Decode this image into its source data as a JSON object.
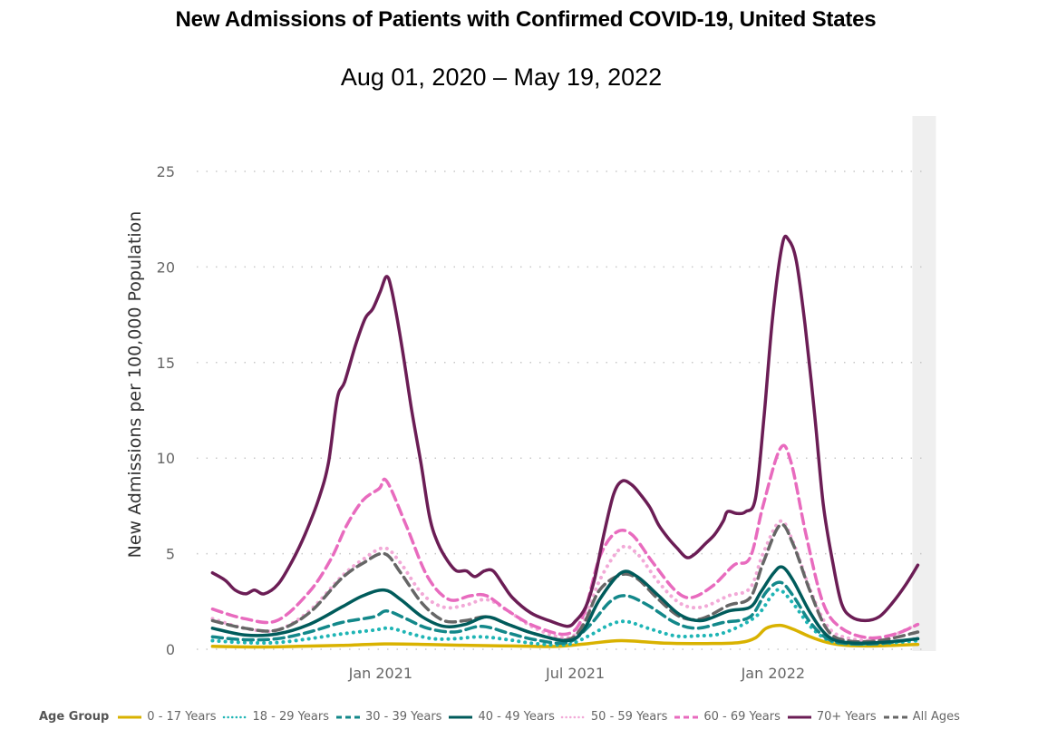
{
  "title": "New Admissions of Patients with Confirmed COVID-19, United States",
  "subtitle": "Aug 01, 2020 – May 19, 2022",
  "chart_data": {
    "type": "line",
    "title": "New Admissions of Patients with Confirmed COVID-19, United States",
    "subtitle": "Aug 01, 2020 – May 19, 2022",
    "xlabel": "",
    "ylabel": "New Admissions per 100,000 Population",
    "x_unit": "days since Aug 01, 2020",
    "xlim": [
      -2,
      664
    ],
    "ylim": [
      0,
      25
    ],
    "yticks": [
      0,
      5,
      10,
      15,
      20,
      25
    ],
    "xticks": [
      {
        "day": 153,
        "label": "Jan 2021"
      },
      {
        "day": 334,
        "label": "Jul 2021"
      },
      {
        "day": 518,
        "label": "Jan 2022"
      }
    ],
    "grid": "horizontal dotted",
    "shaded_region_note": "incomplete recent data",
    "shaded_region_days": [
      656,
      664
    ],
    "legend_position": "bottom",
    "legend_title": "Age Group",
    "series": [
      {
        "name": "0 - 17 Years",
        "color": "#D9B200",
        "style": "solid",
        "points": [
          [
            0,
            0.15
          ],
          [
            40,
            0.12
          ],
          [
            80,
            0.15
          ],
          [
            120,
            0.2
          ],
          [
            160,
            0.28
          ],
          [
            200,
            0.25
          ],
          [
            240,
            0.2
          ],
          [
            280,
            0.17
          ],
          [
            320,
            0.15
          ],
          [
            350,
            0.3
          ],
          [
            380,
            0.45
          ],
          [
            420,
            0.32
          ],
          [
            460,
            0.3
          ],
          [
            490,
            0.35
          ],
          [
            505,
            0.6
          ],
          [
            515,
            1.1
          ],
          [
            528,
            1.25
          ],
          [
            540,
            1.05
          ],
          [
            556,
            0.65
          ],
          [
            572,
            0.35
          ],
          [
            590,
            0.2
          ],
          [
            620,
            0.18
          ],
          [
            656,
            0.25
          ]
        ]
      },
      {
        "name": "18 - 29 Years",
        "color": "#1FB5B5",
        "style": "dotted",
        "points": [
          [
            0,
            0.45
          ],
          [
            30,
            0.35
          ],
          [
            60,
            0.35
          ],
          [
            90,
            0.55
          ],
          [
            120,
            0.8
          ],
          [
            150,
            1.0
          ],
          [
            165,
            1.1
          ],
          [
            185,
            0.8
          ],
          [
            205,
            0.55
          ],
          [
            225,
            0.55
          ],
          [
            250,
            0.65
          ],
          [
            275,
            0.5
          ],
          [
            300,
            0.3
          ],
          [
            330,
            0.25
          ],
          [
            350,
            0.7
          ],
          [
            370,
            1.3
          ],
          [
            385,
            1.45
          ],
          [
            405,
            1.1
          ],
          [
            430,
            0.7
          ],
          [
            450,
            0.7
          ],
          [
            475,
            0.85
          ],
          [
            505,
            1.7
          ],
          [
            520,
            2.8
          ],
          [
            528,
            3.1
          ],
          [
            540,
            2.4
          ],
          [
            556,
            1.2
          ],
          [
            572,
            0.5
          ],
          [
            590,
            0.3
          ],
          [
            620,
            0.3
          ],
          [
            656,
            0.45
          ]
        ]
      },
      {
        "name": "30 - 39 Years",
        "color": "#13888A",
        "style": "dashed",
        "points": [
          [
            0,
            0.65
          ],
          [
            30,
            0.5
          ],
          [
            60,
            0.55
          ],
          [
            90,
            0.9
          ],
          [
            120,
            1.4
          ],
          [
            150,
            1.7
          ],
          [
            162,
            2.0
          ],
          [
            180,
            1.6
          ],
          [
            200,
            1.1
          ],
          [
            225,
            0.9
          ],
          [
            250,
            1.2
          ],
          [
            275,
            0.85
          ],
          [
            300,
            0.5
          ],
          [
            330,
            0.35
          ],
          [
            350,
            1.2
          ],
          [
            370,
            2.5
          ],
          [
            385,
            2.8
          ],
          [
            405,
            2.3
          ],
          [
            430,
            1.4
          ],
          [
            450,
            1.1
          ],
          [
            475,
            1.4
          ],
          [
            500,
            1.7
          ],
          [
            515,
            3.0
          ],
          [
            528,
            3.5
          ],
          [
            540,
            2.8
          ],
          [
            556,
            1.4
          ],
          [
            572,
            0.55
          ],
          [
            590,
            0.3
          ],
          [
            620,
            0.3
          ],
          [
            656,
            0.55
          ]
        ]
      },
      {
        "name": "40 - 49 Years",
        "color": "#005B5B",
        "style": "solid",
        "points": [
          [
            0,
            1.1
          ],
          [
            30,
            0.75
          ],
          [
            60,
            0.8
          ],
          [
            90,
            1.3
          ],
          [
            120,
            2.2
          ],
          [
            140,
            2.8
          ],
          [
            160,
            3.1
          ],
          [
            175,
            2.6
          ],
          [
            195,
            1.7
          ],
          [
            215,
            1.2
          ],
          [
            235,
            1.3
          ],
          [
            255,
            1.7
          ],
          [
            275,
            1.3
          ],
          [
            300,
            0.8
          ],
          [
            330,
            0.45
          ],
          [
            345,
            1.0
          ],
          [
            360,
            2.6
          ],
          [
            380,
            4.0
          ],
          [
            395,
            3.8
          ],
          [
            415,
            2.8
          ],
          [
            435,
            1.8
          ],
          [
            455,
            1.5
          ],
          [
            480,
            2.0
          ],
          [
            500,
            2.2
          ],
          [
            510,
            3.0
          ],
          [
            522,
            4.0
          ],
          [
            530,
            4.3
          ],
          [
            540,
            3.6
          ],
          [
            556,
            1.9
          ],
          [
            572,
            0.7
          ],
          [
            590,
            0.35
          ],
          [
            620,
            0.35
          ],
          [
            656,
            0.55
          ]
        ]
      },
      {
        "name": "50 - 59 Years",
        "color": "#F2A9D7",
        "style": "dotted",
        "points": [
          [
            0,
            1.6
          ],
          [
            30,
            1.1
          ],
          [
            60,
            1.0
          ],
          [
            90,
            2.0
          ],
          [
            120,
            3.8
          ],
          [
            140,
            4.7
          ],
          [
            160,
            5.3
          ],
          [
            175,
            4.5
          ],
          [
            195,
            2.9
          ],
          [
            215,
            2.2
          ],
          [
            235,
            2.3
          ],
          [
            255,
            2.6
          ],
          [
            275,
            2.0
          ],
          [
            300,
            1.1
          ],
          [
            330,
            0.6
          ],
          [
            345,
            1.4
          ],
          [
            360,
            3.6
          ],
          [
            380,
            5.3
          ],
          [
            395,
            5.0
          ],
          [
            415,
            3.5
          ],
          [
            435,
            2.4
          ],
          [
            455,
            2.2
          ],
          [
            480,
            2.8
          ],
          [
            500,
            3.2
          ],
          [
            512,
            5.0
          ],
          [
            528,
            6.7
          ],
          [
            540,
            5.6
          ],
          [
            556,
            3.1
          ],
          [
            572,
            1.2
          ],
          [
            590,
            0.6
          ],
          [
            620,
            0.5
          ],
          [
            656,
            1.3
          ]
        ]
      },
      {
        "name": "60 - 69 Years",
        "color": "#E86BBE",
        "style": "dashed",
        "points": [
          [
            0,
            2.1
          ],
          [
            30,
            1.6
          ],
          [
            60,
            1.5
          ],
          [
            90,
            3.0
          ],
          [
            110,
            4.7
          ],
          [
            125,
            6.5
          ],
          [
            140,
            7.8
          ],
          [
            155,
            8.4
          ],
          [
            162,
            8.8
          ],
          [
            180,
            6.5
          ],
          [
            200,
            3.8
          ],
          [
            220,
            2.6
          ],
          [
            240,
            2.8
          ],
          [
            255,
            2.8
          ],
          [
            275,
            2.0
          ],
          [
            300,
            1.2
          ],
          [
            330,
            0.8
          ],
          [
            345,
            1.8
          ],
          [
            360,
            4.8
          ],
          [
            375,
            6.1
          ],
          [
            390,
            6.0
          ],
          [
            410,
            4.5
          ],
          [
            430,
            3.1
          ],
          [
            445,
            2.7
          ],
          [
            465,
            3.3
          ],
          [
            485,
            4.4
          ],
          [
            500,
            4.8
          ],
          [
            512,
            7.5
          ],
          [
            528,
            10.5
          ],
          [
            538,
            9.8
          ],
          [
            552,
            6.0
          ],
          [
            568,
            2.4
          ],
          [
            585,
            1.1
          ],
          [
            610,
            0.6
          ],
          [
            635,
            0.8
          ],
          [
            656,
            1.3
          ]
        ]
      },
      {
        "name": "70+ Years",
        "color": "#6B1D55",
        "style": "solid",
        "points": [
          [
            0,
            4.0
          ],
          [
            12,
            3.6
          ],
          [
            21,
            3.1
          ],
          [
            31,
            2.9
          ],
          [
            39,
            3.1
          ],
          [
            48,
            2.9
          ],
          [
            61,
            3.4
          ],
          [
            74,
            4.6
          ],
          [
            86,
            6.0
          ],
          [
            99,
            7.9
          ],
          [
            108,
            9.8
          ],
          [
            116,
            13.1
          ],
          [
            123,
            14.0
          ],
          [
            133,
            15.9
          ],
          [
            142,
            17.3
          ],
          [
            149,
            17.8
          ],
          [
            156,
            18.7
          ],
          [
            162,
            19.5
          ],
          [
            167,
            18.7
          ],
          [
            176,
            15.9
          ],
          [
            185,
            12.6
          ],
          [
            194,
            9.7
          ],
          [
            202,
            6.9
          ],
          [
            210,
            5.5
          ],
          [
            219,
            4.6
          ],
          [
            227,
            4.1
          ],
          [
            236,
            4.1
          ],
          [
            244,
            3.8
          ],
          [
            253,
            4.1
          ],
          [
            261,
            4.1
          ],
          [
            270,
            3.4
          ],
          [
            279,
            2.7
          ],
          [
            296,
            1.9
          ],
          [
            313,
            1.5
          ],
          [
            330,
            1.2
          ],
          [
            338,
            1.5
          ],
          [
            347,
            2.2
          ],
          [
            355,
            3.6
          ],
          [
            364,
            6.0
          ],
          [
            373,
            8.1
          ],
          [
            381,
            8.8
          ],
          [
            390,
            8.6
          ],
          [
            398,
            8.1
          ],
          [
            407,
            7.4
          ],
          [
            415,
            6.5
          ],
          [
            424,
            5.8
          ],
          [
            432,
            5.3
          ],
          [
            441,
            4.8
          ],
          [
            449,
            5.0
          ],
          [
            458,
            5.5
          ],
          [
            467,
            6.0
          ],
          [
            475,
            6.7
          ],
          [
            479,
            7.2
          ],
          [
            488,
            7.1
          ],
          [
            496,
            7.2
          ],
          [
            505,
            7.9
          ],
          [
            513,
            12.2
          ],
          [
            521,
            17.4
          ],
          [
            530,
            21.2
          ],
          [
            536,
            21.4
          ],
          [
            543,
            20.3
          ],
          [
            551,
            17.0
          ],
          [
            560,
            12.3
          ],
          [
            568,
            7.6
          ],
          [
            577,
            4.5
          ],
          [
            585,
            2.4
          ],
          [
            594,
            1.7
          ],
          [
            607,
            1.5
          ],
          [
            620,
            1.7
          ],
          [
            632,
            2.4
          ],
          [
            645,
            3.4
          ],
          [
            656,
            4.4
          ]
        ]
      },
      {
        "name": "All Ages",
        "color": "#666666",
        "style": "dashed",
        "points": [
          [
            0,
            1.5
          ],
          [
            30,
            1.1
          ],
          [
            60,
            1.0
          ],
          [
            90,
            1.9
          ],
          [
            120,
            3.7
          ],
          [
            140,
            4.5
          ],
          [
            160,
            5.0
          ],
          [
            175,
            4.0
          ],
          [
            195,
            2.4
          ],
          [
            215,
            1.5
          ],
          [
            235,
            1.5
          ],
          [
            255,
            1.7
          ],
          [
            275,
            1.3
          ],
          [
            300,
            0.8
          ],
          [
            330,
            0.5
          ],
          [
            345,
            1.3
          ],
          [
            360,
            3.1
          ],
          [
            380,
            3.9
          ],
          [
            395,
            3.7
          ],
          [
            415,
            2.6
          ],
          [
            435,
            1.7
          ],
          [
            455,
            1.6
          ],
          [
            480,
            2.3
          ],
          [
            500,
            2.7
          ],
          [
            512,
            4.5
          ],
          [
            528,
            6.5
          ],
          [
            540,
            5.5
          ],
          [
            556,
            3.0
          ],
          [
            572,
            1.0
          ],
          [
            590,
            0.45
          ],
          [
            620,
            0.45
          ],
          [
            656,
            0.9
          ]
        ]
      }
    ]
  }
}
